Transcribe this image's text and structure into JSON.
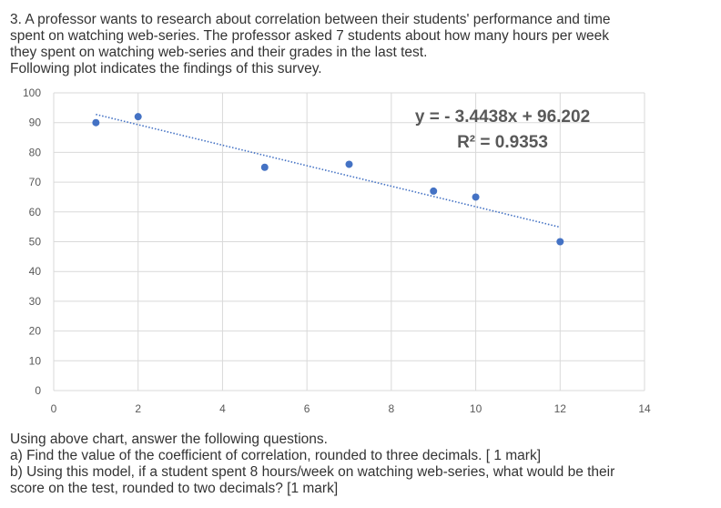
{
  "question": {
    "intro_lines": [
      "3. A professor wants to research about correlation between their students' performance and time",
      "spent on watching web-series. The professor asked 7 students about how many hours per week",
      "they spent on watching web-series and their grades in the last test.",
      "Following plot indicates the findings of this survey."
    ],
    "follow_lines": [
      "Using above chart, answer the following questions.",
      "a) Find the value of the coefficient of correlation, rounded to three decimals. [ 1 mark]",
      "b) Using this model, if a student spent 8 hours/week on watching web-series, what would be their",
      "score on the test, rounded to two decimals? [1 mark]"
    ]
  },
  "chart_data": {
    "type": "scatter",
    "title": "",
    "xlabel": "",
    "ylabel": "",
    "xlim": [
      0,
      14
    ],
    "ylim": [
      0,
      100
    ],
    "x_ticks": [
      0,
      2,
      4,
      6,
      8,
      10,
      12,
      14
    ],
    "y_ticks": [
      0,
      10,
      20,
      30,
      40,
      50,
      60,
      70,
      80,
      90,
      100
    ],
    "grid": true,
    "points": [
      {
        "x": 1,
        "y": 90
      },
      {
        "x": 2,
        "y": 92
      },
      {
        "x": 5,
        "y": 75
      },
      {
        "x": 7,
        "y": 76
      },
      {
        "x": 9,
        "y": 67
      },
      {
        "x": 10,
        "y": 65
      },
      {
        "x": 12,
        "y": 50
      }
    ],
    "trendline": {
      "type": "linear",
      "style": "dotted",
      "x_range": [
        1,
        12
      ],
      "slope": -3.4438,
      "intercept": 96.202,
      "equation_label": "y = - 3.4438x + 96.202",
      "r2_label": "R² = 0.9353"
    },
    "colors": {
      "marker": "#4472c4",
      "trendline": "#4472c4",
      "grid": "#d9d9d9",
      "tick_label": "#595959",
      "annotation": "#595959"
    }
  }
}
